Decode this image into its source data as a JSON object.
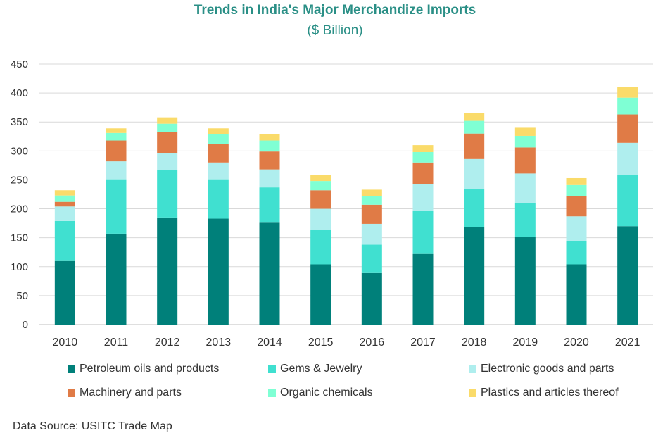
{
  "chart_data": {
    "type": "bar",
    "stacked": true,
    "title": "Trends in India's Major Merchandize Imports",
    "subtitle": "($ Billion)",
    "categories": [
      "2010",
      "2011",
      "2012",
      "2013",
      "2014",
      "2015",
      "2016",
      "2017",
      "2018",
      "2019",
      "2020",
      "2021"
    ],
    "y_ticks": [
      "0",
      "50",
      "100",
      "150",
      "200",
      "250",
      "300",
      "350",
      "400",
      "450"
    ],
    "ylim": [
      0,
      450
    ],
    "grid": true,
    "legend_position": "bottom",
    "series": [
      {
        "name": "Petroleum oils and products",
        "color": "#00807a",
        "values": [
          111,
          157,
          185,
          183,
          176,
          104,
          89,
          122,
          169,
          152,
          104,
          170
        ]
      },
      {
        "name": "Gems & Jewelry",
        "color": "#40e0d0",
        "values": [
          68,
          94,
          82,
          68,
          61,
          60,
          49,
          75,
          65,
          58,
          41,
          89
        ]
      },
      {
        "name": "Electronic goods and parts",
        "color": "#afeeee",
        "values": [
          25,
          31,
          29,
          29,
          31,
          36,
          36,
          46,
          52,
          51,
          42,
          55
        ]
      },
      {
        "name": "Machinery and parts",
        "color": "#e07b46",
        "values": [
          8,
          36,
          37,
          32,
          31,
          32,
          33,
          37,
          44,
          45,
          35,
          49
        ]
      },
      {
        "name": "Organic chemicals",
        "color": "#7fffd4",
        "values": [
          11,
          13,
          14,
          17,
          19,
          16,
          15,
          18,
          22,
          20,
          19,
          29
        ]
      },
      {
        "name": "Plastics and articles thereof",
        "color": "#fadb6a",
        "values": [
          9,
          8,
          11,
          10,
          11,
          11,
          11,
          12,
          14,
          14,
          12,
          18
        ]
      }
    ]
  },
  "footer": {
    "source": "Data Source: USITC Trade Map"
  }
}
